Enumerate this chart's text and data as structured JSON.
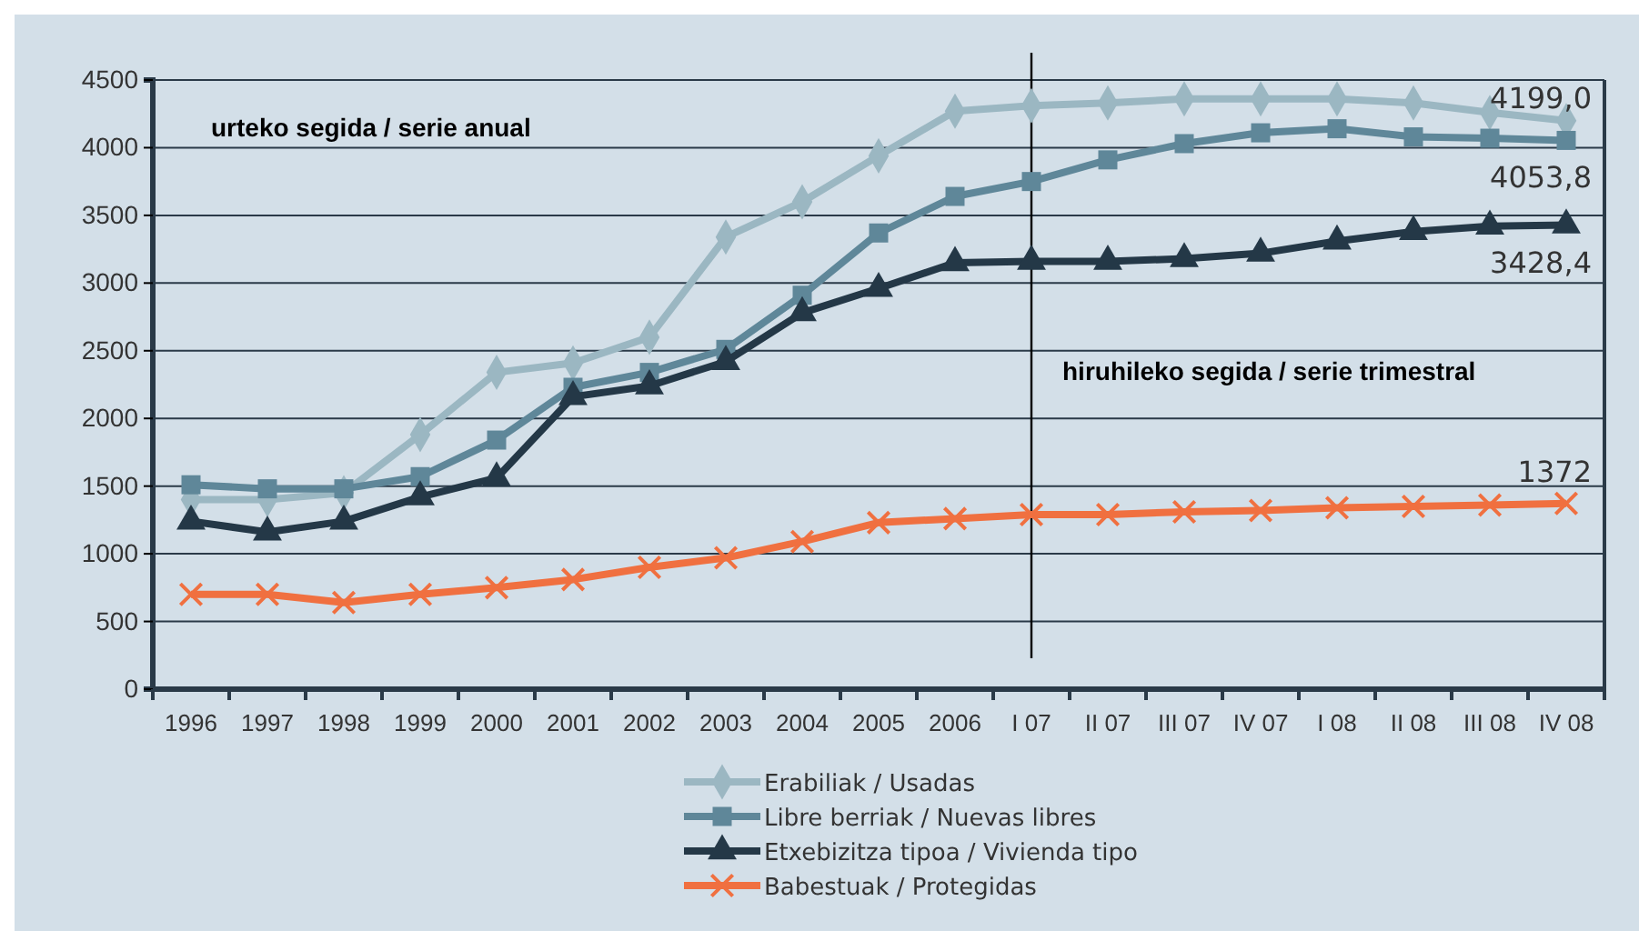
{
  "chart_data": {
    "type": "line",
    "categories": [
      "1996",
      "1997",
      "1998",
      "1999",
      "2000",
      "2001",
      "2002",
      "2003",
      "2004",
      "2005",
      "2006",
      "I 07",
      "II 07",
      "III 07",
      "IV 07",
      "I 08",
      "II 08",
      "III 08",
      "IV 08"
    ],
    "ylim": [
      0,
      4500
    ],
    "yticks": [
      0,
      500,
      1000,
      1500,
      2000,
      2500,
      3000,
      3500,
      4000,
      4500
    ],
    "grid": "y",
    "legend": "bottom",
    "series": [
      {
        "name": "Erabiliak / Usadas",
        "color": "#9bb7c2",
        "marker": "diamond",
        "values": [
          1400,
          1400,
          1450,
          1880,
          2340,
          2410,
          2600,
          3340,
          3600,
          3940,
          4270,
          4310,
          4330,
          4360,
          4360,
          4360,
          4330,
          4260,
          4199.0
        ],
        "value_labels": [
          null,
          null,
          null,
          null,
          null,
          null,
          null,
          null,
          null,
          null,
          null,
          null,
          null,
          null,
          null,
          null,
          null,
          null,
          "4199,0"
        ]
      },
      {
        "name": "Libre berriak / Nuevas libres",
        "color": "#5f8799",
        "marker": "square",
        "values": [
          1510,
          1480,
          1480,
          1570,
          1840,
          2230,
          2340,
          2510,
          2910,
          3370,
          3640,
          3750,
          3910,
          4030,
          4110,
          4140,
          4080,
          4070,
          4053.8
        ],
        "value_labels": [
          null,
          null,
          null,
          null,
          null,
          null,
          null,
          null,
          null,
          null,
          null,
          null,
          null,
          null,
          null,
          null,
          null,
          null,
          "4053,8"
        ]
      },
      {
        "name": "Etxebizitza tipoa / Vivienda tipo",
        "color": "#243847",
        "marker": "triangle",
        "values": [
          1240,
          1160,
          1240,
          1420,
          1560,
          2160,
          2240,
          2420,
          2780,
          2960,
          3150,
          3160,
          3160,
          3180,
          3220,
          3310,
          3380,
          3420,
          3428.4
        ],
        "value_labels": [
          null,
          null,
          null,
          null,
          null,
          null,
          null,
          null,
          null,
          null,
          null,
          null,
          null,
          null,
          null,
          null,
          null,
          null,
          "3428,4"
        ]
      },
      {
        "name": "Babestuak / Protegidas",
        "color": "#f07040",
        "marker": "cross",
        "values": [
          700,
          700,
          640,
          700,
          750,
          810,
          900,
          970,
          1090,
          1230,
          1260,
          1290,
          1290,
          1310,
          1320,
          1340,
          1350,
          1360,
          1372
        ],
        "value_labels": [
          null,
          null,
          null,
          null,
          null,
          null,
          null,
          null,
          null,
          null,
          null,
          null,
          null,
          null,
          null,
          null,
          null,
          null,
          "1372"
        ]
      }
    ],
    "ref_lines": [
      {
        "axis": "x",
        "value": "I 07",
        "color": "#000000"
      }
    ],
    "annotations": [
      "urteko segida / serie anual",
      "hiruhileko segida / serie trimestral"
    ]
  }
}
